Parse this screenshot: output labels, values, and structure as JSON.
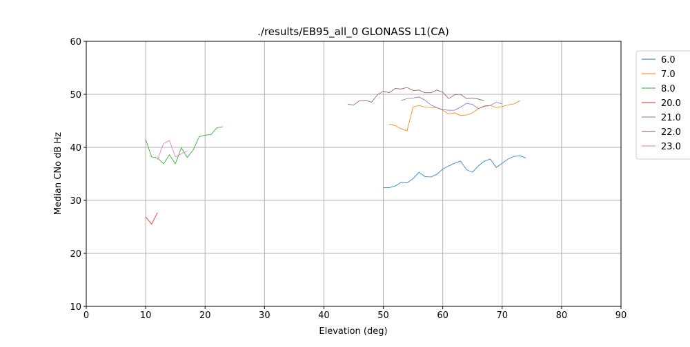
{
  "chart_data": {
    "type": "line",
    "title": "./results/EB95_all_0 GLONASS L1(CA)",
    "xlabel": "Elevation (deg)",
    "ylabel": "Median CNo dB Hz",
    "xlim": [
      0,
      90
    ],
    "xticks": [
      0,
      10,
      20,
      30,
      40,
      50,
      60,
      70,
      80,
      90
    ],
    "ylim": [
      10,
      60
    ],
    "yticks": [
      10,
      20,
      30,
      40,
      50,
      60
    ],
    "grid": true,
    "legend": "outside-right",
    "series": [
      {
        "name": "6.0",
        "color": "#1f77b4",
        "x": [
          50,
          51,
          52,
          53,
          54,
          55,
          56,
          57,
          58,
          59,
          60,
          61,
          62,
          63,
          64,
          65,
          66,
          67,
          68,
          69,
          70,
          71,
          72,
          73,
          74
        ],
        "values": [
          32.4,
          32.4,
          32.7,
          33.4,
          33.3,
          34.1,
          35.3,
          34.5,
          34.4,
          34.9,
          35.9,
          36.5,
          37.0,
          37.4,
          35.8,
          35.3,
          36.5,
          37.4,
          37.8,
          36.2,
          37.0,
          37.8,
          38.3,
          38.4,
          38.0
        ]
      },
      {
        "name": "7.0",
        "color": "#ff7f0e",
        "x": [
          51,
          52,
          53,
          54,
          55,
          56,
          57,
          58,
          59,
          60,
          61,
          62,
          63,
          64,
          65,
          66,
          67,
          68,
          69,
          70,
          71,
          72,
          73
        ],
        "values": [
          44.4,
          44.1,
          43.5,
          43.1,
          47.6,
          47.9,
          47.6,
          47.5,
          47.5,
          47.0,
          46.3,
          46.5,
          46.0,
          46.1,
          46.5,
          47.3,
          47.7,
          47.9,
          47.5,
          47.7,
          48.0,
          48.2,
          48.8
        ]
      },
      {
        "name": "8.0",
        "color": "#2ca02c",
        "x": [
          10,
          11,
          12,
          13,
          14,
          15,
          16,
          17,
          18,
          19,
          20,
          21,
          22,
          23
        ],
        "values": [
          41.5,
          38.2,
          38.0,
          36.9,
          38.6,
          36.9,
          39.9,
          38.1,
          39.5,
          42.0,
          42.3,
          42.4,
          43.7,
          43.9
        ]
      },
      {
        "name": "20.0",
        "color": "#d62728",
        "x": [
          10,
          11,
          12
        ],
        "values": [
          26.9,
          25.5,
          27.7
        ]
      },
      {
        "name": "21.0",
        "color": "#9467bd",
        "x": [
          53,
          54,
          55,
          56,
          57,
          58,
          59,
          60,
          61,
          62,
          63,
          64,
          65,
          66,
          67,
          68,
          69,
          70
        ],
        "values": [
          48.8,
          49.2,
          49.3,
          49.5,
          48.9,
          48.0,
          47.5,
          47.1,
          47.0,
          47.0,
          47.6,
          48.3,
          48.1,
          47.3,
          47.8,
          47.9,
          48.5,
          48.2
        ]
      },
      {
        "name": "22.0",
        "color": "#8c564b",
        "x": [
          44,
          45,
          46,
          47,
          48,
          49,
          50,
          51,
          52,
          53,
          54,
          55,
          56,
          57,
          58,
          59,
          60,
          61,
          62,
          63,
          64,
          65,
          66,
          67
        ],
        "values": [
          48.1,
          48.0,
          48.8,
          48.9,
          48.5,
          49.9,
          50.6,
          50.3,
          51.1,
          51.0,
          51.3,
          50.7,
          50.8,
          50.3,
          50.3,
          50.8,
          50.4,
          49.2,
          49.9,
          50.0,
          49.2,
          49.3,
          49.1,
          48.8
        ]
      },
      {
        "name": "23.0",
        "color": "#e377c2",
        "x": [
          12,
          13,
          14,
          15,
          16,
          17
        ],
        "values": [
          37.7,
          40.7,
          41.3,
          38.2,
          38.8,
          39.3
        ]
      }
    ]
  }
}
